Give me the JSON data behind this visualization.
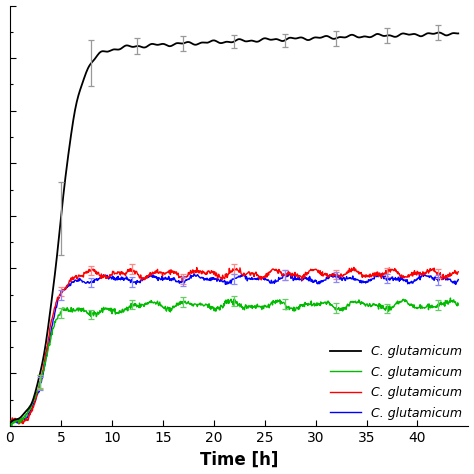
{
  "title": "",
  "xlabel": "Time [h]",
  "ylabel": "",
  "xlim": [
    0,
    45
  ],
  "ylim": [
    0,
    4.0
  ],
  "x_ticks": [
    0,
    5,
    10,
    15,
    20,
    25,
    30,
    35,
    40
  ],
  "legend_labels": [
    "C. glutamicum",
    "C. glutamicum",
    "C. glutamicum",
    "C. glutamicum"
  ],
  "line_colors": [
    "#000000",
    "#00bb00",
    "#ff0000",
    "#0000ff"
  ],
  "background_color": "#ffffff",
  "xlabel_fontsize": 12,
  "legend_fontsize": 9,
  "wt_plateau": 3.6,
  "wt_growth_rate": 1.0,
  "wt_midpoint": 4.8,
  "mut_plateau": 1.45,
  "mut_green_plateau": 1.15,
  "mut_growth_rate": 1.4,
  "mut_midpoint": 3.6
}
